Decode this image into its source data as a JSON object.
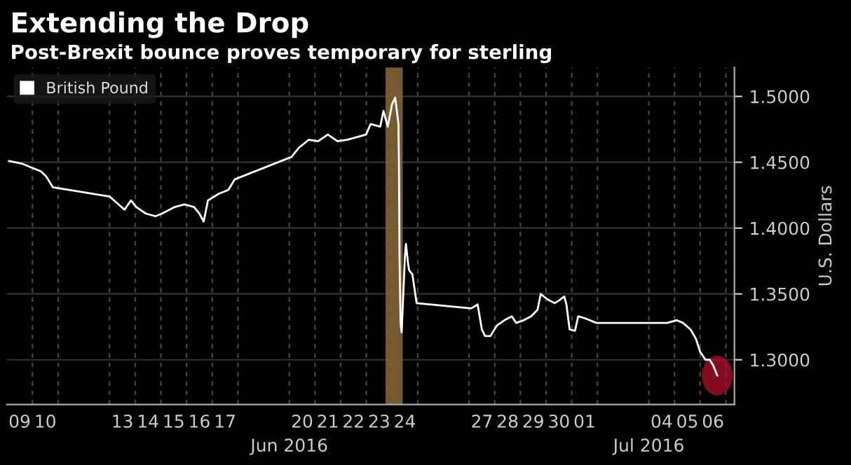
{
  "chart_data": {
    "type": "line",
    "title": "Extending the Drop",
    "subtitle": "Post-Brexit bounce proves temporary for sterling",
    "ylabel": "U.S. Dollars",
    "series": [
      {
        "name": "British Pound",
        "color": "#ffffff",
        "x": [
          "2016-06-09T02:00",
          "2016-06-09T14:00",
          "2016-06-09T23:00",
          "2016-06-10T08:00",
          "2016-06-10T13:00",
          "2016-06-10T19:00",
          "2016-06-13T00:00",
          "2016-06-13T07:00",
          "2016-06-13T14:00",
          "2016-06-13T20:00",
          "2016-06-14T01:00",
          "2016-06-14T10:00",
          "2016-06-14T19:00",
          "2016-06-15T01:00",
          "2016-06-15T13:00",
          "2016-06-15T22:00",
          "2016-06-16T07:00",
          "2016-06-16T12:00",
          "2016-06-16T16:00",
          "2016-06-16T20:00",
          "2016-06-17T06:00",
          "2016-06-17T15:00",
          "2016-06-17T21:00",
          "2016-06-20T02:00",
          "2016-06-20T09:00",
          "2016-06-20T18:00",
          "2016-06-21T03:00",
          "2016-06-21T12:00",
          "2016-06-21T21:00",
          "2016-06-22T06:00",
          "2016-06-22T15:00",
          "2016-06-22T23:45",
          "2016-06-23T04:00",
          "2016-06-23T13:00",
          "2016-06-23T16:00",
          "2016-06-23T20:00",
          "2016-06-24T00:00",
          "2016-06-24T03:00",
          "2016-06-24T06:00",
          "2016-06-24T06:30",
          "2016-06-24T07:00",
          "2016-06-24T08:00",
          "2016-06-24T09:00",
          "2016-06-24T11:00",
          "2016-06-24T12:00",
          "2016-06-24T13:00",
          "2016-06-24T15:00",
          "2016-06-24T16:00",
          "2016-06-24T19:00",
          "2016-06-24T23:00",
          "2016-06-27T02:00",
          "2016-06-27T08:00",
          "2016-06-27T12:00",
          "2016-06-27T15:00",
          "2016-06-27T20:00",
          "2016-06-28T02:00",
          "2016-06-28T09:00",
          "2016-06-28T16:00",
          "2016-06-28T20:00",
          "2016-06-29T03:00",
          "2016-06-29T10:00",
          "2016-06-29T16:00",
          "2016-06-29T19:00",
          "2016-06-30T01:00",
          "2016-06-30T08:00",
          "2016-06-30T12:00",
          "2016-06-30T17:00",
          "2016-06-30T19:00",
          "2016-06-30T22:00",
          "2016-07-01T03:00",
          "2016-07-01T06:00",
          "2016-07-01T14:00",
          "2016-07-01T23:00",
          "2016-07-04T08:00",
          "2016-07-04T17:00",
          "2016-07-05T02:00",
          "2016-07-05T08:00",
          "2016-07-05T15:00",
          "2016-07-05T20:00",
          "2016-07-06T00:00",
          "2016-07-06T05:00",
          "2016-07-06T09:00",
          "2016-07-06T12:00",
          "2016-07-06T16:00"
        ],
        "values": [
          1.451,
          1.449,
          1.446,
          1.443,
          1.439,
          1.431,
          1.424,
          1.419,
          1.414,
          1.421,
          1.416,
          1.411,
          1.409,
          1.411,
          1.416,
          1.418,
          1.416,
          1.411,
          1.405,
          1.421,
          1.426,
          1.429,
          1.437,
          1.454,
          1.461,
          1.467,
          1.466,
          1.471,
          1.466,
          1.467,
          1.469,
          1.471,
          1.479,
          1.477,
          1.489,
          1.477,
          1.494,
          1.499,
          1.479,
          1.448,
          1.378,
          1.328,
          1.321,
          1.358,
          1.378,
          1.388,
          1.373,
          1.368,
          1.365,
          1.343,
          1.339,
          1.342,
          1.323,
          1.318,
          1.318,
          1.326,
          1.33,
          1.333,
          1.328,
          1.33,
          1.333,
          1.338,
          1.35,
          1.346,
          1.343,
          1.345,
          1.348,
          1.342,
          1.323,
          1.322,
          1.333,
          1.331,
          1.328,
          1.328,
          1.328,
          1.33,
          1.328,
          1.323,
          1.316,
          1.306,
          1.3,
          1.3,
          1.296,
          1.288
        ]
      }
    ],
    "xlim": [
      "2016-06-09T00:00",
      "2016-07-07T08:00"
    ],
    "xticks": [
      {
        "value": "2016-06-09T12:00",
        "label": "09"
      },
      {
        "value": "2016-06-10T12:00",
        "label": "10"
      },
      {
        "value": "2016-06-13T12:00",
        "label": "13"
      },
      {
        "value": "2016-06-14T12:00",
        "label": "14"
      },
      {
        "value": "2016-06-15T12:00",
        "label": "15"
      },
      {
        "value": "2016-06-16T12:00",
        "label": "16"
      },
      {
        "value": "2016-06-17T12:00",
        "label": "17"
      },
      {
        "value": "2016-06-20T12:00",
        "label": "20"
      },
      {
        "value": "2016-06-21T12:00",
        "label": "21"
      },
      {
        "value": "2016-06-22T12:00",
        "label": "22"
      },
      {
        "value": "2016-06-23T12:00",
        "label": "23"
      },
      {
        "value": "2016-06-24T12:00",
        "label": "24"
      },
      {
        "value": "2016-06-27T12:00",
        "label": "27"
      },
      {
        "value": "2016-06-28T12:00",
        "label": "28"
      },
      {
        "value": "2016-06-29T12:00",
        "label": "29"
      },
      {
        "value": "2016-06-30T12:00",
        "label": "30"
      },
      {
        "value": "2016-07-01T12:00",
        "label": "01"
      },
      {
        "value": "2016-07-04T12:00",
        "label": "04"
      },
      {
        "value": "2016-07-05T12:00",
        "label": "05"
      },
      {
        "value": "2016-07-06T12:00",
        "label": "06"
      }
    ],
    "ylim": [
      1.266,
      1.522
    ],
    "yticks": [
      {
        "value": 1.3,
        "label": "1.3000"
      },
      {
        "value": 1.35,
        "label": "1.3500"
      },
      {
        "value": 1.4,
        "label": "1.4000"
      },
      {
        "value": 1.45,
        "label": "1.4500"
      },
      {
        "value": 1.5,
        "label": "1.5000"
      }
    ],
    "bands": [
      {
        "axis": "x",
        "from": "2016-06-23T18:00",
        "to": "2016-06-24T10:00",
        "color": "#8a6a3a"
      }
    ],
    "annotations": [
      "Jun 2016",
      "Jul 2016"
    ],
    "grid": true,
    "legend": "top left"
  }
}
